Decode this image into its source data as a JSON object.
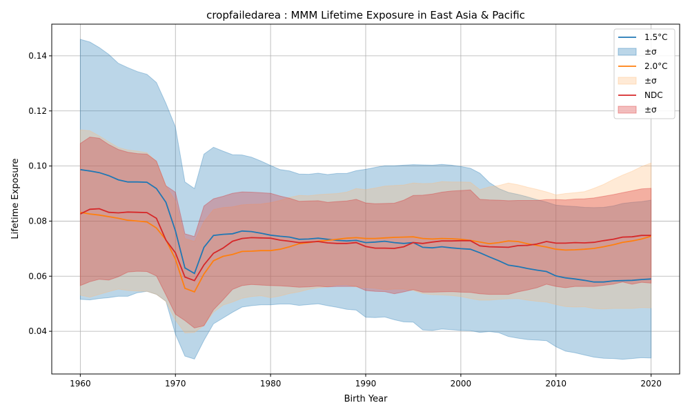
{
  "chart_data": {
    "type": "line",
    "title": "cropfailedarea : MMM Lifetime Exposure in East Asia & Pacific",
    "xlabel": "Birth Year",
    "ylabel": "Lifetime Exposure",
    "xlim": [
      1957,
      2023
    ],
    "ylim": [
      0.0245,
      0.1515
    ],
    "xticks": [
      1960,
      1970,
      1980,
      1990,
      2000,
      2010,
      2020
    ],
    "yticks": [
      0.04,
      0.06,
      0.08,
      0.1,
      0.12,
      0.14
    ],
    "grid": true,
    "legend_position": "top-right",
    "x": [
      1960,
      1961,
      1962,
      1963,
      1964,
      1965,
      1966,
      1967,
      1968,
      1969,
      1970,
      1971,
      1972,
      1973,
      1974,
      1975,
      1976,
      1977,
      1978,
      1979,
      1980,
      1981,
      1982,
      1983,
      1984,
      1985,
      1986,
      1987,
      1988,
      1989,
      1990,
      1991,
      1992,
      1993,
      1994,
      1995,
      1996,
      1997,
      1998,
      1999,
      2000,
      2001,
      2002,
      2003,
      2004,
      2005,
      2006,
      2007,
      2008,
      2009,
      2010,
      2011,
      2012,
      2013,
      2014,
      2015,
      2016,
      2017,
      2018,
      2019,
      2020
    ],
    "series": [
      {
        "name": "1.5°C",
        "band_label": "±σ",
        "color": "#1f77b4",
        "fill": "#1f77b4",
        "values": [
          0.0987,
          0.0982,
          0.0976,
          0.0965,
          0.095,
          0.0942,
          0.0942,
          0.0941,
          0.0918,
          0.0868,
          0.0765,
          0.063,
          0.061,
          0.0705,
          0.0748,
          0.0752,
          0.0754,
          0.0764,
          0.0762,
          0.0756,
          0.0749,
          0.0745,
          0.0742,
          0.0734,
          0.0735,
          0.0738,
          0.0734,
          0.073,
          0.0728,
          0.073,
          0.0722,
          0.0724,
          0.0727,
          0.0722,
          0.0719,
          0.0722,
          0.0705,
          0.0703,
          0.0707,
          0.0703,
          0.07,
          0.0698,
          0.0685,
          0.067,
          0.0656,
          0.064,
          0.0635,
          0.0628,
          0.0622,
          0.0617,
          0.0601,
          0.0594,
          0.059,
          0.0585,
          0.0579,
          0.0579,
          0.0583,
          0.0584,
          0.0585,
          0.0588,
          0.059
        ],
        "upper": [
          0.146,
          0.145,
          0.143,
          0.1405,
          0.1373,
          0.1357,
          0.1343,
          0.1333,
          0.1303,
          0.1227,
          0.1142,
          0.0942,
          0.0918,
          0.1043,
          0.1068,
          0.1054,
          0.1041,
          0.104,
          0.1032,
          0.1018,
          0.1002,
          0.0987,
          0.0982,
          0.0971,
          0.097,
          0.0974,
          0.0969,
          0.0973,
          0.0973,
          0.0983,
          0.0988,
          0.0995,
          0.1001,
          0.1001,
          0.1003,
          0.1005,
          0.1004,
          0.1003,
          0.1006,
          0.1003,
          0.0998,
          0.0992,
          0.0974,
          0.094,
          0.0918,
          0.0904,
          0.0897,
          0.0888,
          0.0878,
          0.0869,
          0.0858,
          0.0855,
          0.0853,
          0.085,
          0.0849,
          0.085,
          0.0855,
          0.0864,
          0.0868,
          0.0871,
          0.0876
        ],
        "lower": [
          0.0516,
          0.0514,
          0.0519,
          0.0522,
          0.0527,
          0.0527,
          0.054,
          0.0545,
          0.0534,
          0.0509,
          0.039,
          0.031,
          0.0299,
          0.0367,
          0.0427,
          0.0448,
          0.0469,
          0.0488,
          0.0493,
          0.0496,
          0.0496,
          0.0499,
          0.0499,
          0.0494,
          0.0497,
          0.05,
          0.0493,
          0.0487,
          0.048,
          0.0477,
          0.0451,
          0.045,
          0.0452,
          0.0442,
          0.0434,
          0.0433,
          0.0405,
          0.0403,
          0.0408,
          0.0406,
          0.0403,
          0.0402,
          0.0396,
          0.0399,
          0.0395,
          0.0381,
          0.0375,
          0.037,
          0.0368,
          0.0366,
          0.0344,
          0.0328,
          0.0322,
          0.0314,
          0.0306,
          0.0302,
          0.0301,
          0.0298,
          0.0301,
          0.0304,
          0.0303
        ]
      },
      {
        "name": "2.0°C",
        "band_label": "±σ",
        "color": "#ff7f0e",
        "fill": "#ffbb78",
        "values": [
          0.0832,
          0.0826,
          0.0822,
          0.0816,
          0.081,
          0.0803,
          0.08,
          0.0797,
          0.0775,
          0.0732,
          0.0662,
          0.0556,
          0.0543,
          0.0608,
          0.0656,
          0.0672,
          0.0679,
          0.069,
          0.0691,
          0.0693,
          0.0693,
          0.0698,
          0.0707,
          0.0718,
          0.0722,
          0.0727,
          0.073,
          0.0734,
          0.0738,
          0.074,
          0.0737,
          0.0737,
          0.0739,
          0.0741,
          0.0742,
          0.0743,
          0.0737,
          0.0735,
          0.0737,
          0.0736,
          0.0734,
          0.073,
          0.0724,
          0.0718,
          0.0722,
          0.0728,
          0.0726,
          0.0718,
          0.0712,
          0.0706,
          0.0698,
          0.0695,
          0.0696,
          0.0698,
          0.0701,
          0.0707,
          0.0714,
          0.0723,
          0.0728,
          0.0735,
          0.0745
        ],
        "upper": [
          0.1131,
          0.1128,
          0.1109,
          0.1088,
          0.1067,
          0.1058,
          0.1054,
          0.1048,
          0.1016,
          0.0928,
          0.0873,
          0.0737,
          0.0726,
          0.0798,
          0.0842,
          0.0849,
          0.0852,
          0.0859,
          0.0861,
          0.0862,
          0.0867,
          0.0875,
          0.0886,
          0.0893,
          0.0892,
          0.0896,
          0.0898,
          0.09,
          0.0905,
          0.0918,
          0.0914,
          0.092,
          0.0927,
          0.0929,
          0.0931,
          0.0938,
          0.0936,
          0.0937,
          0.0943,
          0.0942,
          0.0942,
          0.0941,
          0.0914,
          0.0924,
          0.0929,
          0.0938,
          0.0932,
          0.0923,
          0.0915,
          0.0906,
          0.0895,
          0.09,
          0.0903,
          0.0907,
          0.0919,
          0.0933,
          0.0951,
          0.0967,
          0.0981,
          0.0998,
          0.1011
        ],
        "lower": [
          0.0531,
          0.0524,
          0.0534,
          0.0544,
          0.0553,
          0.0548,
          0.0546,
          0.0545,
          0.0534,
          0.0508,
          0.0441,
          0.0394,
          0.0396,
          0.0421,
          0.0469,
          0.0495,
          0.0506,
          0.052,
          0.0526,
          0.0529,
          0.0522,
          0.0528,
          0.0537,
          0.0543,
          0.0552,
          0.0558,
          0.0562,
          0.0569,
          0.057,
          0.0561,
          0.0559,
          0.0556,
          0.0551,
          0.0553,
          0.0553,
          0.0548,
          0.0537,
          0.0533,
          0.0532,
          0.053,
          0.0526,
          0.0519,
          0.0513,
          0.0513,
          0.0516,
          0.0518,
          0.0519,
          0.0513,
          0.0509,
          0.0506,
          0.0497,
          0.049,
          0.0488,
          0.0489,
          0.0483,
          0.0481,
          0.0483,
          0.0483,
          0.0483,
          0.0486,
          0.0485
        ]
      },
      {
        "name": "NDC",
        "band_label": "±σ",
        "color": "#d62728",
        "fill": "#d62728",
        "values": [
          0.0826,
          0.0843,
          0.0845,
          0.0832,
          0.083,
          0.0833,
          0.0832,
          0.0831,
          0.081,
          0.0731,
          0.0685,
          0.0597,
          0.0584,
          0.0641,
          0.0683,
          0.0702,
          0.0727,
          0.0737,
          0.074,
          0.0739,
          0.0738,
          0.0731,
          0.0727,
          0.0722,
          0.0724,
          0.0726,
          0.0721,
          0.0719,
          0.0719,
          0.0722,
          0.0708,
          0.0702,
          0.0702,
          0.0701,
          0.0707,
          0.0722,
          0.0719,
          0.0724,
          0.0728,
          0.0728,
          0.0729,
          0.0729,
          0.071,
          0.0707,
          0.0706,
          0.0705,
          0.0711,
          0.0712,
          0.0717,
          0.0726,
          0.072,
          0.072,
          0.0722,
          0.0721,
          0.0723,
          0.0729,
          0.0734,
          0.0742,
          0.0743,
          0.0748,
          0.0748
        ],
        "upper": [
          0.1082,
          0.1105,
          0.1101,
          0.1078,
          0.106,
          0.105,
          0.1045,
          0.1043,
          0.1018,
          0.0928,
          0.0905,
          0.0754,
          0.0744,
          0.0855,
          0.0881,
          0.089,
          0.0901,
          0.0906,
          0.0905,
          0.0903,
          0.0901,
          0.0891,
          0.0883,
          0.0872,
          0.0873,
          0.0874,
          0.0868,
          0.0871,
          0.0873,
          0.0879,
          0.0866,
          0.0863,
          0.0864,
          0.0865,
          0.0876,
          0.0893,
          0.0894,
          0.0898,
          0.0905,
          0.0909,
          0.0911,
          0.0913,
          0.0879,
          0.0877,
          0.0876,
          0.0874,
          0.0875,
          0.0875,
          0.0875,
          0.0878,
          0.0878,
          0.0877,
          0.088,
          0.0881,
          0.0884,
          0.089,
          0.0896,
          0.0903,
          0.091,
          0.0917,
          0.0919
        ],
        "lower": [
          0.0566,
          0.058,
          0.0589,
          0.0586,
          0.0598,
          0.0615,
          0.0618,
          0.0617,
          0.0601,
          0.0532,
          0.0462,
          0.0439,
          0.0412,
          0.042,
          0.0478,
          0.0514,
          0.0552,
          0.0566,
          0.057,
          0.0568,
          0.0566,
          0.0565,
          0.0563,
          0.056,
          0.0561,
          0.0564,
          0.0561,
          0.0563,
          0.0563,
          0.0563,
          0.0548,
          0.0545,
          0.0544,
          0.0536,
          0.0543,
          0.0551,
          0.0542,
          0.0542,
          0.0543,
          0.0544,
          0.0542,
          0.0541,
          0.0536,
          0.0534,
          0.0534,
          0.0534,
          0.0543,
          0.055,
          0.0558,
          0.0571,
          0.0563,
          0.0558,
          0.0563,
          0.0563,
          0.0563,
          0.0567,
          0.0571,
          0.0579,
          0.0571,
          0.0578,
          0.0575
        ]
      }
    ]
  }
}
